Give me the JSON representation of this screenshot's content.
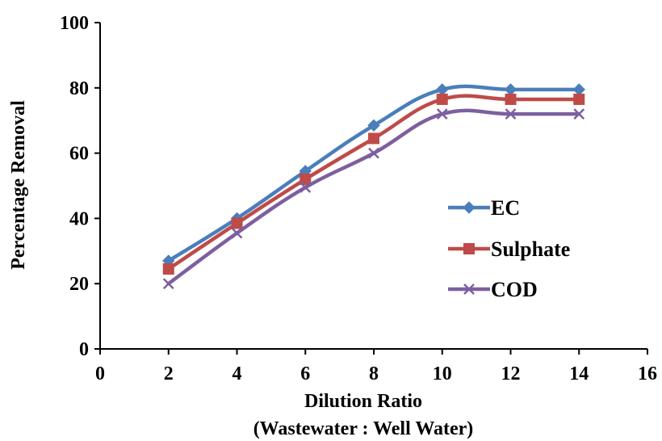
{
  "chart_data": {
    "type": "line",
    "title": "",
    "xlabel": "Dilution Ratio",
    "xlabel_line2": "(Wastewater : Well Water)",
    "ylabel": "Percentage Removal",
    "xlim": [
      0,
      16
    ],
    "ylim": [
      0,
      100
    ],
    "xticks": [
      "0",
      "2",
      "4",
      "6",
      "8",
      "10",
      "12",
      "14",
      "16"
    ],
    "yticks": [
      "0",
      "20",
      "40",
      "60",
      "80",
      "100"
    ],
    "grid": false,
    "legend_position": "right",
    "x": [
      2,
      4,
      6,
      8,
      10,
      12,
      14
    ],
    "series": [
      {
        "name": "EC",
        "color": "#4a7ebb",
        "marker": "diamond",
        "values": [
          27,
          40,
          54.5,
          68.5,
          79.5,
          79.5,
          79.5
        ]
      },
      {
        "name": "Sulphate",
        "color": "#be4b48",
        "marker": "square",
        "values": [
          24.5,
          38.5,
          52,
          64.5,
          76.5,
          76.5,
          76.5
        ]
      },
      {
        "name": "COD",
        "color": "#7d5fa0",
        "marker": "x",
        "values": [
          20,
          35.5,
          49.5,
          60,
          72,
          72,
          72
        ]
      }
    ]
  }
}
